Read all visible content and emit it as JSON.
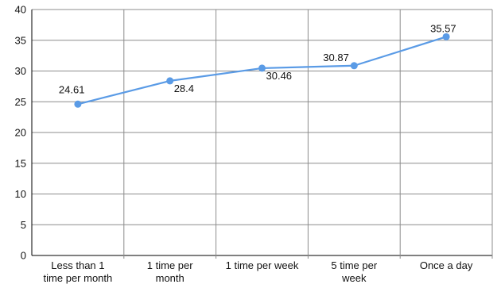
{
  "chart_data": {
    "type": "line",
    "categories": [
      [
        "Less than 1",
        "time per month"
      ],
      [
        "1 time per",
        "month"
      ],
      [
        "1 time per week"
      ],
      [
        "5 time per",
        "week"
      ],
      [
        "Once a day"
      ]
    ],
    "series": [
      {
        "values": [
          24.61,
          28.4,
          30.46,
          30.87,
          35.57
        ],
        "color": "#5a9be6"
      }
    ],
    "data_labels": [
      "24.61",
      "28.4",
      "30.46",
      "30.87",
      "35.57"
    ],
    "ylim": [
      0,
      40
    ],
    "yticks": [
      "0",
      "5",
      "10",
      "15",
      "20",
      "25",
      "30",
      "35",
      "40"
    ],
    "grid": true,
    "legend": "none"
  }
}
